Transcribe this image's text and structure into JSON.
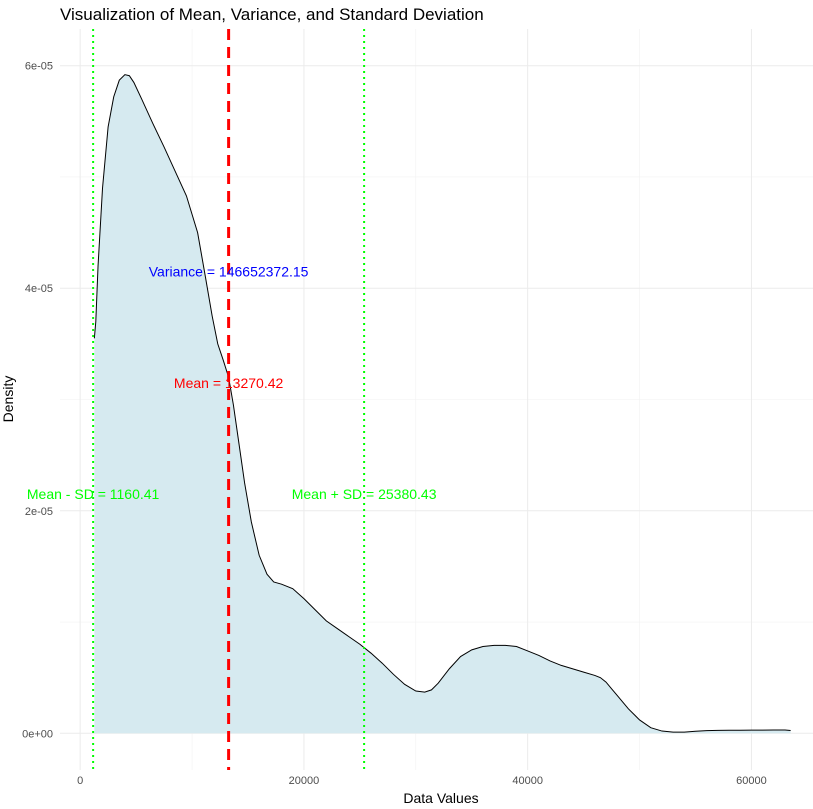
{
  "chart_data": {
    "type": "area",
    "title": "Visualization of Mean, Variance, and Standard Deviation",
    "xlabel": "Data Values",
    "ylabel": "Density",
    "xlim": [
      -1800,
      65500
    ],
    "ylim": [
      -3.3e-06,
      6.33e-05
    ],
    "x_ticks": [
      {
        "value": 0,
        "label": "0"
      },
      {
        "value": 20000,
        "label": "20000"
      },
      {
        "value": 40000,
        "label": "40000"
      },
      {
        "value": 60000,
        "label": "60000"
      }
    ],
    "y_ticks": [
      {
        "value": 0,
        "label": "0e+00"
      },
      {
        "value": 2e-05,
        "label": "2e-05"
      },
      {
        "value": 4e-05,
        "label": "4e-05"
      },
      {
        "value": 6e-05,
        "label": "6e-05"
      }
    ],
    "grid": true,
    "fill_color": "#d6eaf0",
    "line_color": "#000000",
    "series": [
      {
        "x": [
          1270,
          1400,
          1600,
          2000,
          2500,
          3000,
          3500,
          4000,
          4400,
          4800,
          5500,
          6500,
          7500,
          8500,
          9500,
          10500,
          11200,
          11800,
          12300,
          12800,
          13270,
          13700,
          14200,
          14700,
          15300,
          16000,
          16700,
          17300,
          18000,
          19000,
          20000,
          21000,
          22000,
          23000,
          24000,
          25000,
          26000,
          27000,
          28000,
          29000,
          30000,
          30800,
          31400,
          32000,
          33000,
          34000,
          35000,
          36000,
          37000,
          38000,
          39000,
          40000,
          41000,
          42000,
          43000,
          44000,
          45000,
          46000,
          46500,
          47000,
          47500,
          48000,
          49000,
          50000,
          51000,
          52000,
          53000,
          54000,
          55000,
          56000,
          57000,
          58000,
          59000,
          60000,
          61000,
          62000,
          63000,
          63500
        ],
        "y": [
          3.55e-05,
          3.7e-05,
          4.2e-05,
          4.9e-05,
          5.45e-05,
          5.72e-05,
          5.87e-05,
          5.92e-05,
          5.91e-05,
          5.85e-05,
          5.7e-05,
          5.48e-05,
          5.27e-05,
          5.05e-05,
          4.83e-05,
          4.5e-05,
          4.1e-05,
          3.75e-05,
          3.5e-05,
          3.35e-05,
          3.2e-05,
          2.95e-05,
          2.6e-05,
          2.25e-05,
          1.9e-05,
          1.6e-05,
          1.43e-05,
          1.36e-05,
          1.34e-05,
          1.3e-05,
          1.21e-05,
          1.11e-05,
          1.01e-05,
          9.4e-06,
          8.7e-06,
          8e-06,
          7.2e-06,
          6.3e-06,
          5.3e-06,
          4.4e-06,
          3.8e-06,
          3.7e-06,
          3.9e-06,
          4.5e-06,
          5.8e-06,
          6.9e-06,
          7.5e-06,
          7.8e-06,
          7.9e-06,
          7.9e-06,
          7.8e-06,
          7.4e-06,
          7e-06,
          6.5e-06,
          6.1e-06,
          5.8e-06,
          5.5e-06,
          5.2e-06,
          5e-06,
          4.6e-06,
          4e-06,
          3.4e-06,
          2.2e-06,
          1.2e-06,
          5e-07,
          2e-07,
          1e-07,
          1e-07,
          1.8e-07,
          2.4e-07,
          2.6e-07,
          2.7e-07,
          2.7e-07,
          2.8e-07,
          2.8e-07,
          2.9e-07,
          3e-07,
          2.5e-07
        ]
      }
    ],
    "vlines": [
      {
        "name": "mean-line",
        "x": 13270.42,
        "color": "#ff0000",
        "style": "dashed"
      },
      {
        "name": "mean-minus-sd-line",
        "x": 1160.41,
        "color": "#00ff00",
        "style": "dotted"
      },
      {
        "name": "mean-plus-sd-line",
        "x": 25380.43,
        "color": "#00ff00",
        "style": "dotted"
      }
    ],
    "annotations": [
      {
        "name": "variance-label",
        "text": "Variance = 146652372.15",
        "x": 13270.42,
        "y": 4.15e-05,
        "color": "#0000ff"
      },
      {
        "name": "mean-label",
        "text": "Mean = 13270.42",
        "x": 13270.42,
        "y": 3.15e-05,
        "color": "#ff0000"
      },
      {
        "name": "mean-minus-sd-label",
        "text": "Mean - SD = 1160.41",
        "x": 1160.41,
        "y": 2.15e-05,
        "color": "#00ff00"
      },
      {
        "name": "mean-plus-sd-label",
        "text": "Mean + SD = 25380.43",
        "x": 25380.43,
        "y": 2.15e-05,
        "color": "#00ff00"
      }
    ]
  }
}
